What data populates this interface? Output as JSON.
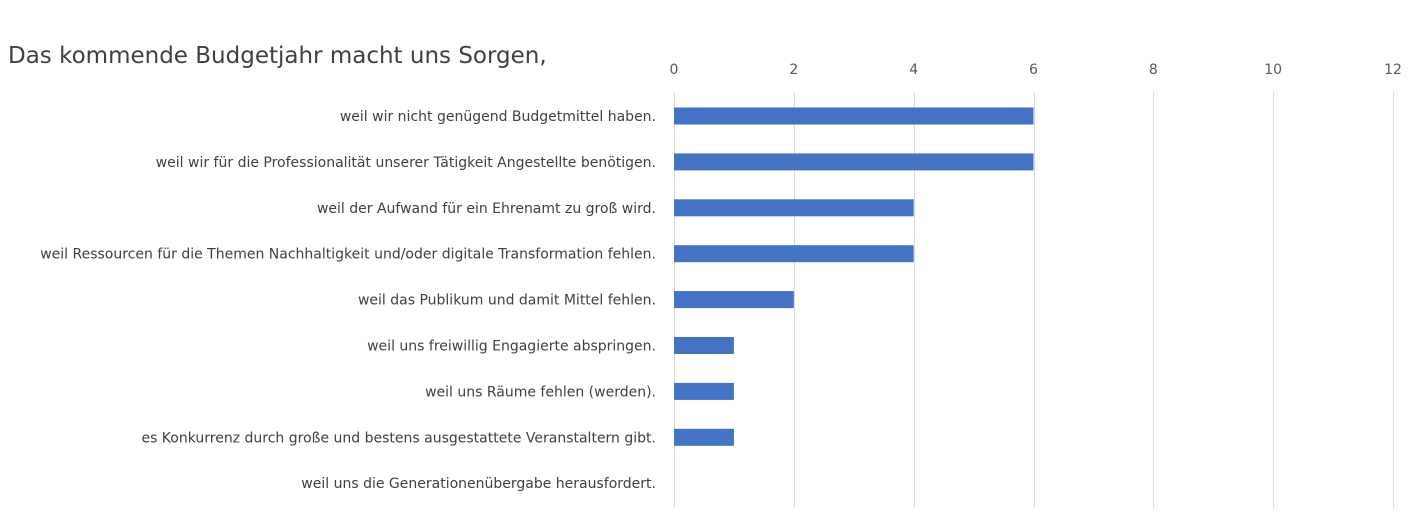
{
  "chart_data": {
    "type": "bar",
    "orientation": "horizontal",
    "title": "Das kommende Budgetjahr macht uns Sorgen,",
    "xlabel": "",
    "ylabel": "",
    "xlim": [
      0,
      12
    ],
    "ticks": [
      0,
      2,
      4,
      6,
      8,
      10,
      12
    ],
    "tick_labels": [
      "0",
      "2",
      "4",
      "6",
      "8",
      "10",
      "12"
    ],
    "axis_position": "top",
    "grid": true,
    "legend": "none",
    "bar_color": "#4472c4",
    "categories": [
      "weil wir nicht genügend Budgetmittel haben.",
      "weil wir für die Professionalität unserer Tätigkeit Angestellte benötigen.",
      "weil der Aufwand für ein Ehrenamt zu groß wird.",
      "weil Ressourcen für die Themen Nachhaltigkeit und/oder digitale Transformation fehlen.",
      "weil das Publikum und damit Mittel fehlen.",
      "weil uns freiwillig Engagierte abspringen.",
      "weil uns Räume fehlen (werden).",
      "es Konkurrenz durch große und bestens ausgestattete Veranstaltern gibt.",
      "weil uns die Generationenübergabe herausfordert."
    ],
    "values": [
      6,
      6,
      4,
      4,
      2,
      1,
      1,
      1,
      0
    ]
  }
}
